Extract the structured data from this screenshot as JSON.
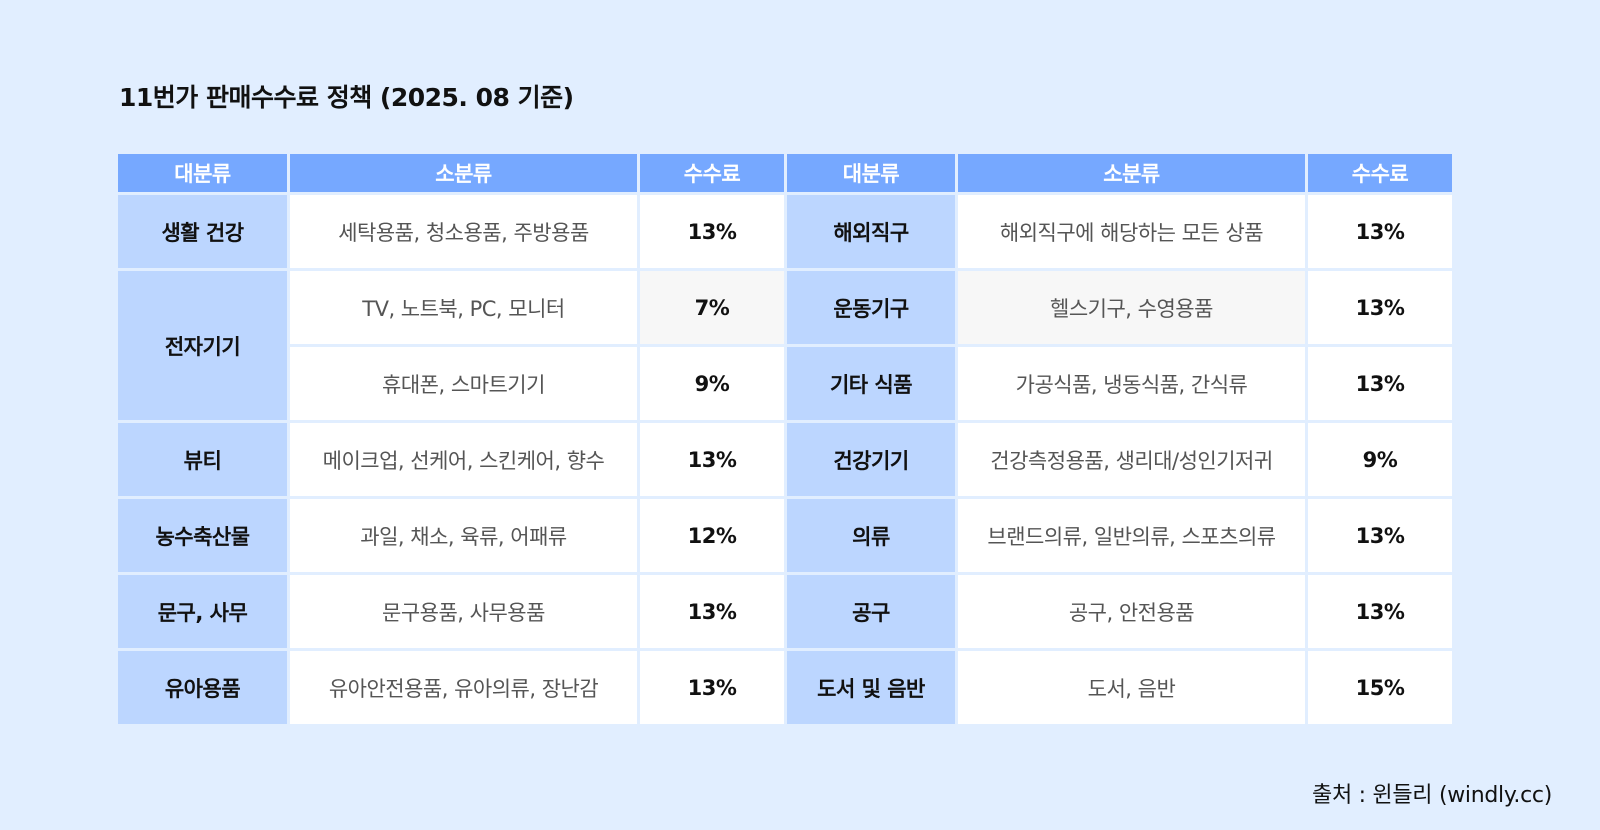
{
  "title": "11번가 판매수수료 정책 (2025. 08 기준)",
  "table": {
    "headers": [
      "대분류",
      "소분류",
      "수수료",
      "대분류",
      "소분류",
      "수수료"
    ],
    "left": [
      {
        "category": "생활 건강",
        "sub": "세탁용품, 청소용품, 주방용품",
        "fee": "13%"
      },
      {
        "category": "전자기기",
        "sub": "TV, 노트북, PC, 모니터",
        "fee": "7%"
      },
      {
        "category": "전자기기",
        "sub": "휴대폰, 스마트기기",
        "fee": "9%"
      },
      {
        "category": "뷰티",
        "sub": "메이크업, 선케어, 스킨케어, 향수",
        "fee": "13%"
      },
      {
        "category": "농수축산물",
        "sub": "과일, 채소, 육류, 어패류",
        "fee": "12%"
      },
      {
        "category": "문구, 사무",
        "sub": "문구용품, 사무용품",
        "fee": "13%"
      },
      {
        "category": "유아용품",
        "sub": "유아안전용품, 유아의류, 장난감",
        "fee": "13%"
      }
    ],
    "right": [
      {
        "category": "해외직구",
        "sub": "해외직구에 해당하는 모든 상품",
        "fee": "13%"
      },
      {
        "category": "운동기구",
        "sub": "헬스기구, 수영용품",
        "fee": "13%"
      },
      {
        "category": "기타 식품",
        "sub": "가공식품, 냉동식품, 간식류",
        "fee": "13%"
      },
      {
        "category": "건강기기",
        "sub": "건강측정용품, 생리대/성인기저귀",
        "fee": "9%"
      },
      {
        "category": "의류",
        "sub": "브랜드의류, 일반의류, 스포츠의류",
        "fee": "13%"
      },
      {
        "category": "공구",
        "sub": "공구, 안전용품",
        "fee": "13%"
      },
      {
        "category": "도서 및 음반",
        "sub": "도서, 음반",
        "fee": "15%"
      }
    ]
  },
  "source": "출처 : 윈들리 (windly.cc)",
  "colors": {
    "header": "#76a8ff",
    "category": "#bcd6ff",
    "background": "#e1eeff"
  }
}
